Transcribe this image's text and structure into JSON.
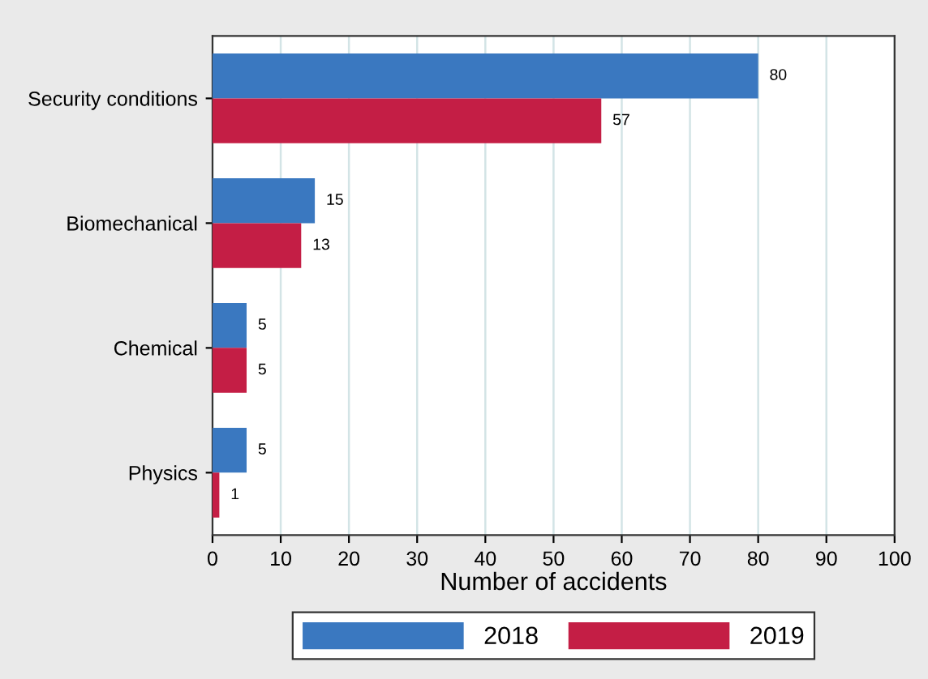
{
  "chart_data": {
    "type": "bar",
    "orientation": "horizontal",
    "xlabel": "Number of accidents",
    "categories": [
      "Security conditions",
      "Biomechanical",
      "Chemical",
      "Physics"
    ],
    "series": [
      {
        "name": "2018",
        "color": "#3a78c0",
        "values": [
          80,
          15,
          5,
          5
        ]
      },
      {
        "name": "2019",
        "color": "#c41e45",
        "values": [
          57,
          13,
          5,
          1
        ]
      }
    ],
    "xlim": [
      0,
      100
    ],
    "xticks": [
      0,
      10,
      20,
      30,
      40,
      50,
      60,
      70,
      80,
      90,
      100
    ],
    "grid": "x",
    "legend": "bottom",
    "data_labels": true
  }
}
